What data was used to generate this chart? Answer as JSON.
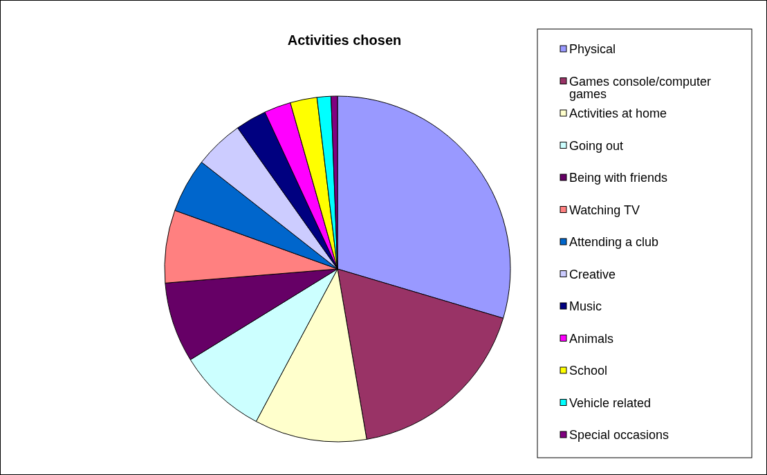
{
  "chart_data": {
    "type": "pie",
    "title": "Activities chosen",
    "categories": [
      "Physical",
      "Games console/computer games",
      "Activities at home",
      "Going out",
      "Being with friends",
      "Watching TV",
      "Attending a club",
      "Creative",
      "Music",
      "Animals",
      "School",
      "Vehicle related",
      "Special occasions"
    ],
    "values": [
      29.6,
      17.7,
      10.5,
      8.4,
      7.5,
      6.8,
      5.1,
      4.6,
      2.9,
      2.5,
      2.5,
      1.3,
      0.6
    ],
    "colors": [
      "#9999ff",
      "#993366",
      "#ffffcc",
      "#ccffff",
      "#660066",
      "#ff8080",
      "#0066cc",
      "#ccccff",
      "#000080",
      "#ff00ff",
      "#ffff00",
      "#00ffff",
      "#800080"
    ],
    "legend": "right"
  }
}
